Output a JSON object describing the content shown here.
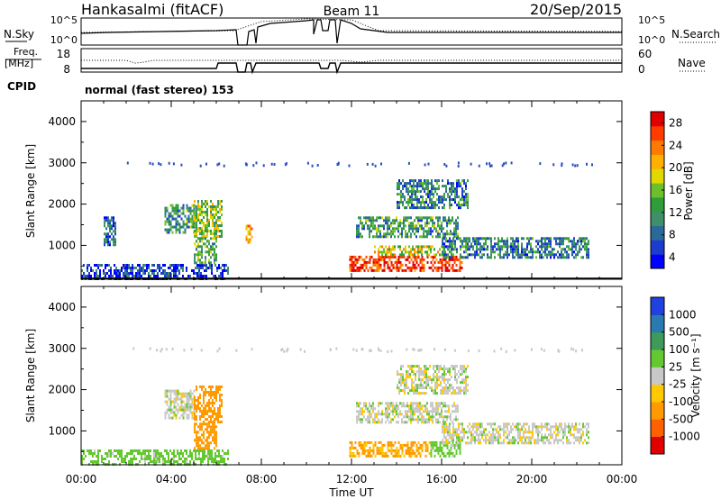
{
  "header": {
    "station": "Hankasalmi (fitACF)",
    "beam": "Beam 11",
    "date": "20/Sep/2015"
  },
  "strips": {
    "nsky_label": "N.Sky",
    "nsearch_label": "N.Search",
    "noise_ticks_left": [
      "10^5",
      "10^0"
    ],
    "noise_ticks_right": [
      "10^5",
      "10^0"
    ],
    "freq_label_1": "Freq.",
    "freq_label_2": "[MHz]",
    "freq_ticks": [
      "18",
      "8"
    ],
    "nave_label": "Nave",
    "nave_ticks": [
      "60",
      "0"
    ],
    "cpid_label": "CPID",
    "cpid_text": "normal (fast stereo) 153"
  },
  "chart_data": [
    {
      "type": "heatmap",
      "panel": "power",
      "ylabel": "Slant Range [km]",
      "yticks": [
        1000,
        2000,
        3000,
        4000
      ],
      "ylim": [
        180,
        4500
      ],
      "xlim": [
        0,
        24
      ],
      "colorbar": {
        "label": "Power [dB]",
        "ticks": [
          "28",
          "24",
          "20",
          "16",
          "12",
          "8",
          "4"
        ],
        "colors": [
          "#0000ff",
          "#1c3ccc",
          "#2a6a9a",
          "#3f8f6b",
          "#2e9d3a",
          "#6cc02c",
          "#e0d800",
          "#ffb000",
          "#ff7a00",
          "#ff3b00",
          "#e00000"
        ]
      },
      "regions": [
        {
          "x": [
            1.0,
            1.5
          ],
          "y": [
            1000,
            1700
          ],
          "value": 8
        },
        {
          "x": [
            0.0,
            6.5
          ],
          "y": [
            200,
            550
          ],
          "value": 6
        },
        {
          "x": [
            3.7,
            5.0
          ],
          "y": [
            1300,
            2000
          ],
          "value": 12
        },
        {
          "x": [
            5.0,
            6.2
          ],
          "y": [
            1200,
            2100
          ],
          "value": 16
        },
        {
          "x": [
            5.0,
            6.0
          ],
          "y": [
            600,
            1200
          ],
          "value": 14
        },
        {
          "x": [
            7.3,
            7.6
          ],
          "y": [
            1100,
            1500
          ],
          "value": 22
        },
        {
          "x": [
            11.9,
            16.9
          ],
          "y": [
            400,
            750
          ],
          "value": 27
        },
        {
          "x": [
            13.0,
            16.5
          ],
          "y": [
            750,
            1000
          ],
          "value": 18
        },
        {
          "x": [
            12.2,
            16.7
          ],
          "y": [
            1200,
            1700
          ],
          "value": 12
        },
        {
          "x": [
            14.0,
            17.2
          ],
          "y": [
            1900,
            2600
          ],
          "value": 10
        },
        {
          "x": [
            16.0,
            22.5
          ],
          "y": [
            700,
            1200
          ],
          "value": 10
        }
      ]
    },
    {
      "type": "heatmap",
      "panel": "velocity",
      "xlabel": "Time UT",
      "ylabel": "Slant Range [km]",
      "xticks": [
        "00:00",
        "04:00",
        "08:00",
        "12:00",
        "16:00",
        "20:00",
        "00:00"
      ],
      "yticks": [
        1000,
        2000,
        3000,
        4000
      ],
      "ylim": [
        180,
        4500
      ],
      "xlim": [
        0,
        24
      ],
      "colorbar": {
        "label": "Velocity [m s⁻¹]",
        "ticks": [
          "1000",
          "500",
          "100",
          "25",
          "-25",
          "-100",
          "-500",
          "-1000"
        ],
        "colors": [
          "#2040e0",
          "#2a7ab0",
          "#3d9a5a",
          "#64c830",
          "#c8c8c8",
          "#ffc800",
          "#ff9a00",
          "#ff6000",
          "#e00000"
        ]
      },
      "regions": [
        {
          "x": [
            0.0,
            6.5
          ],
          "y": [
            200,
            550
          ],
          "value": 60
        },
        {
          "x": [
            3.7,
            5.0
          ],
          "y": [
            1300,
            2000
          ],
          "value": 0
        },
        {
          "x": [
            5.0,
            6.2
          ],
          "y": [
            1200,
            2100
          ],
          "value": -300
        },
        {
          "x": [
            5.0,
            6.0
          ],
          "y": [
            600,
            1200
          ],
          "value": -150
        },
        {
          "x": [
            11.9,
            15.5
          ],
          "y": [
            400,
            750
          ],
          "value": -120
        },
        {
          "x": [
            15.5,
            16.8
          ],
          "y": [
            400,
            750
          ],
          "value": 60
        },
        {
          "x": [
            12.2,
            16.7
          ],
          "y": [
            1200,
            1700
          ],
          "value": 0
        },
        {
          "x": [
            14.0,
            17.2
          ],
          "y": [
            1900,
            2600
          ],
          "value": 0
        },
        {
          "x": [
            16.0,
            22.5
          ],
          "y": [
            700,
            1200
          ],
          "value": 0
        }
      ]
    }
  ]
}
